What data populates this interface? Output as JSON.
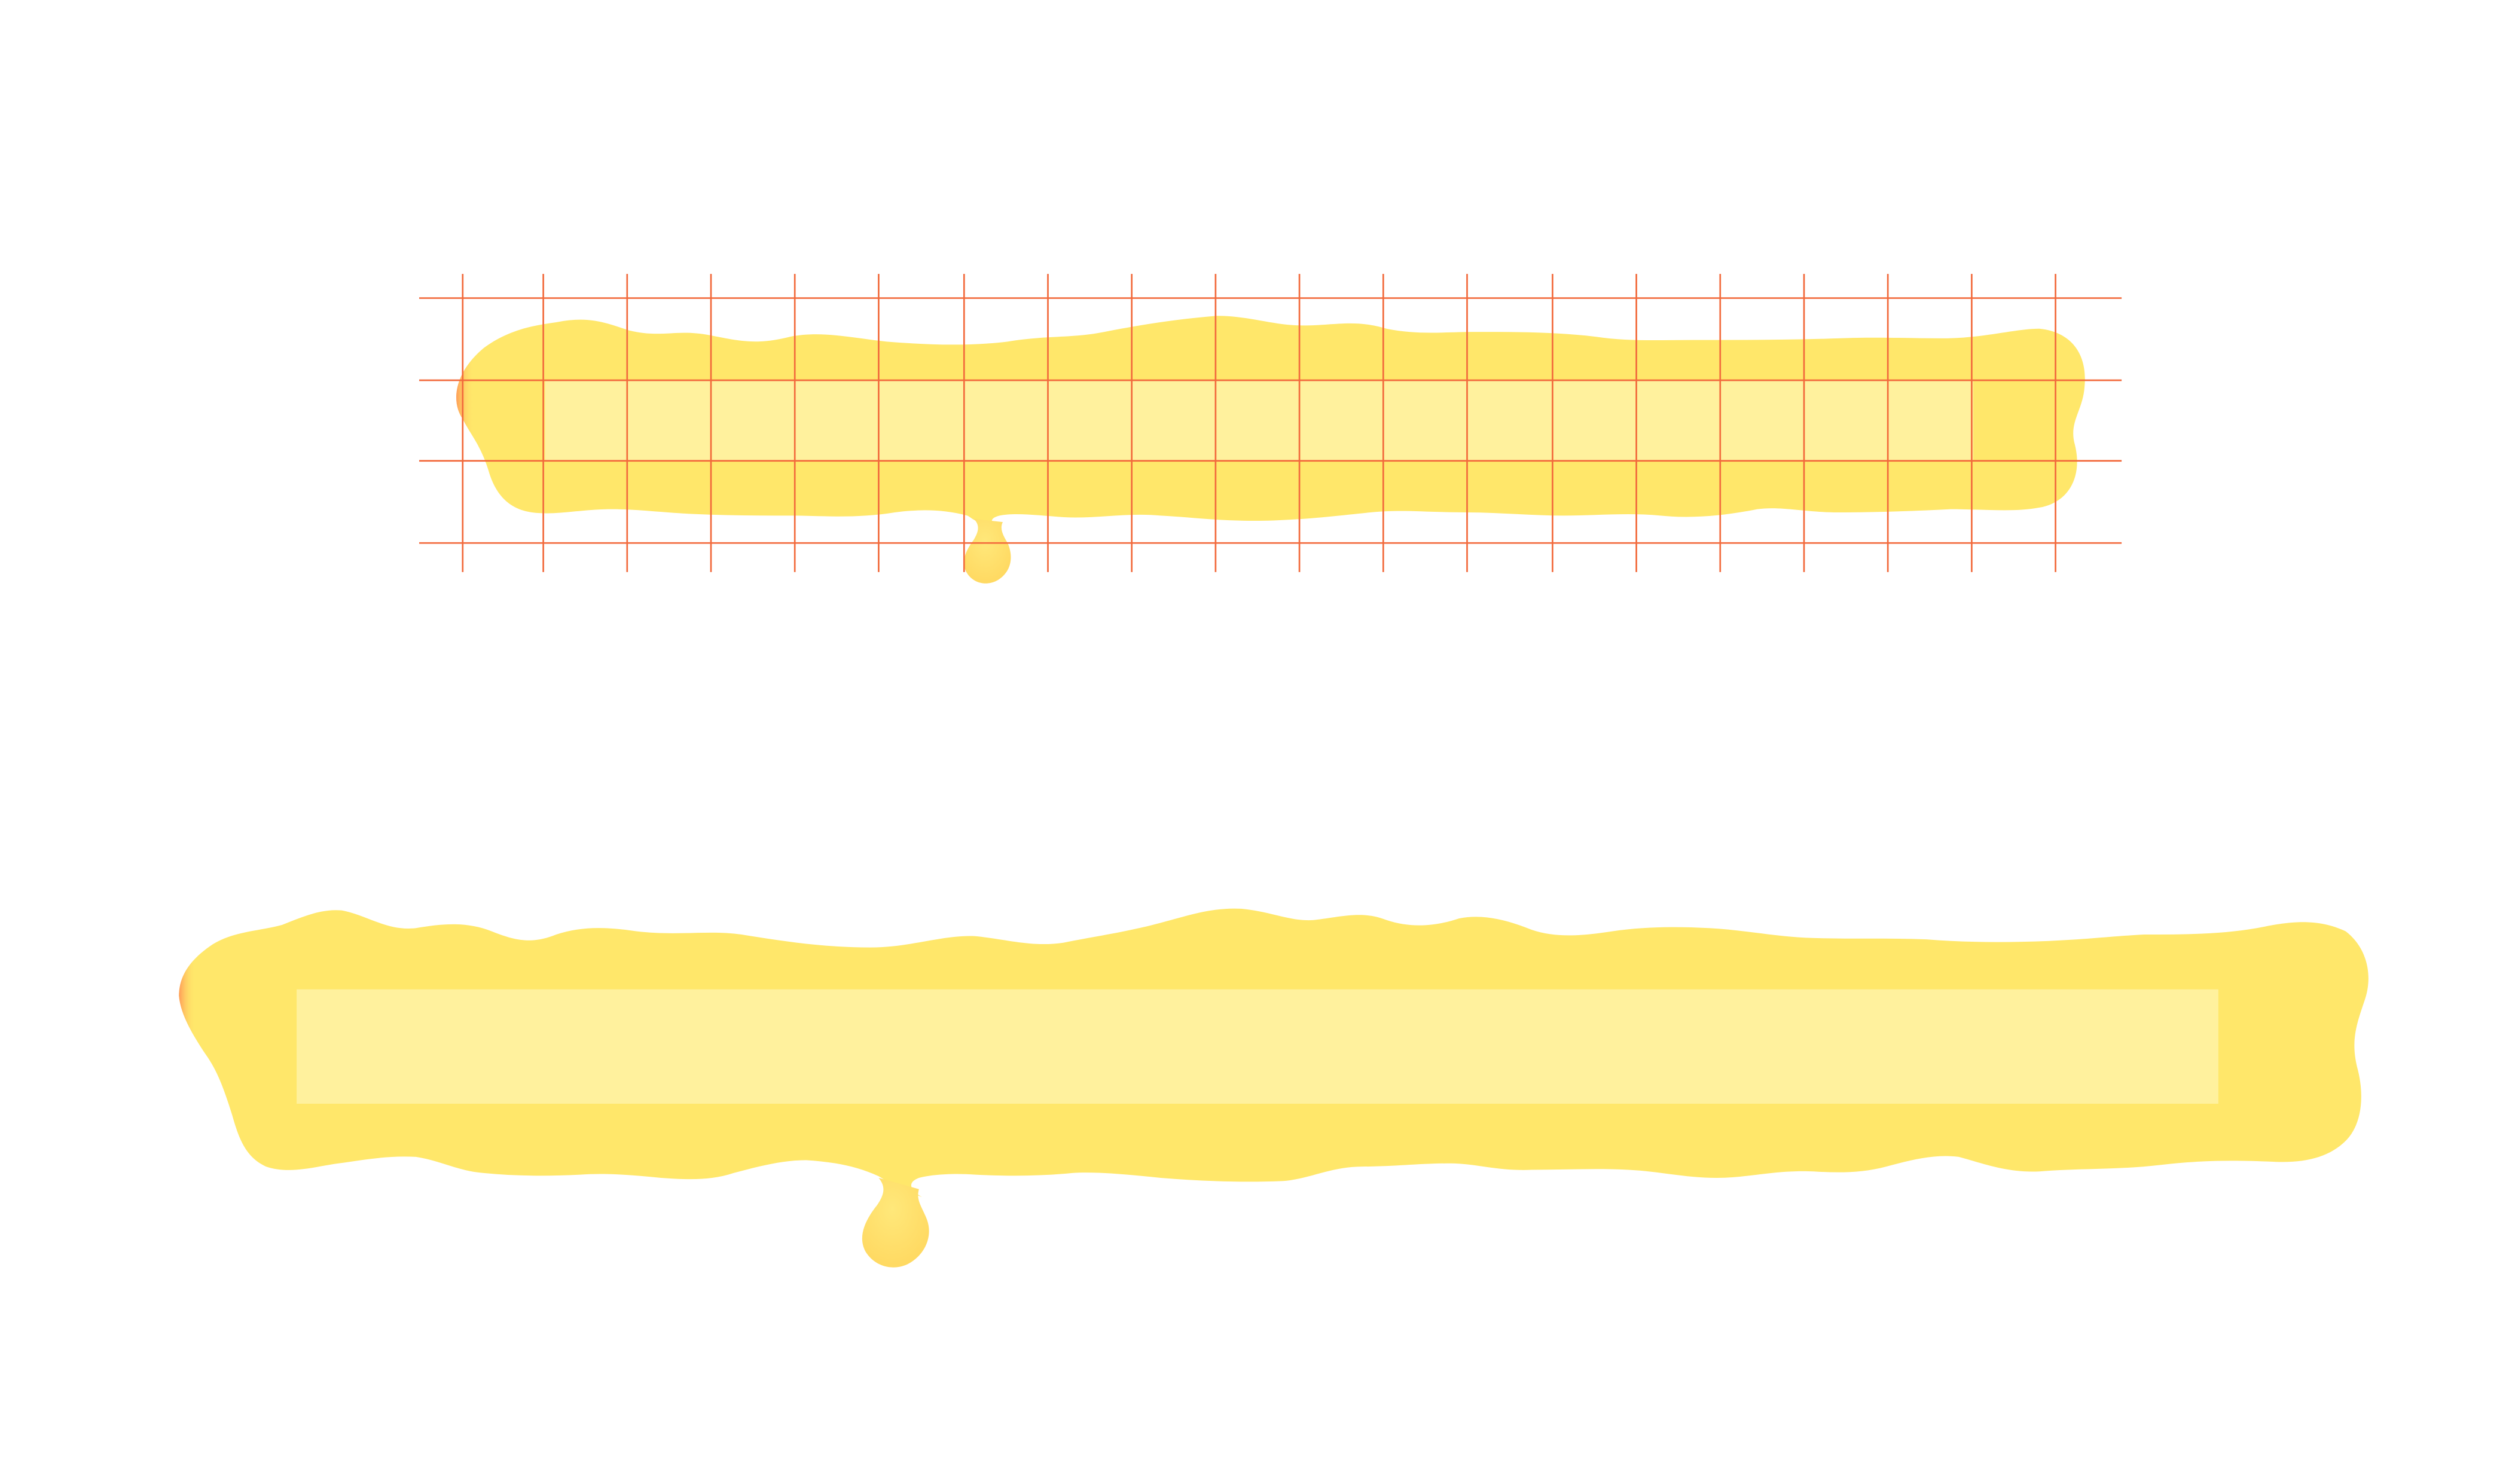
{
  "canvas": {
    "background": "#ffffff"
  },
  "colors": {
    "slime_body": "#ffe76a",
    "slime_inner_panel": "#fff2a6",
    "slime_edge_glow": "#ff9a5c",
    "guide_lines": "#f26a3c"
  },
  "assets": [
    {
      "name": "slime-progress-bar-with-guide-grid",
      "has_grid": true,
      "has_drip": true
    },
    {
      "name": "slime-progress-bar-preview",
      "has_grid": false,
      "has_drip": true
    }
  ]
}
